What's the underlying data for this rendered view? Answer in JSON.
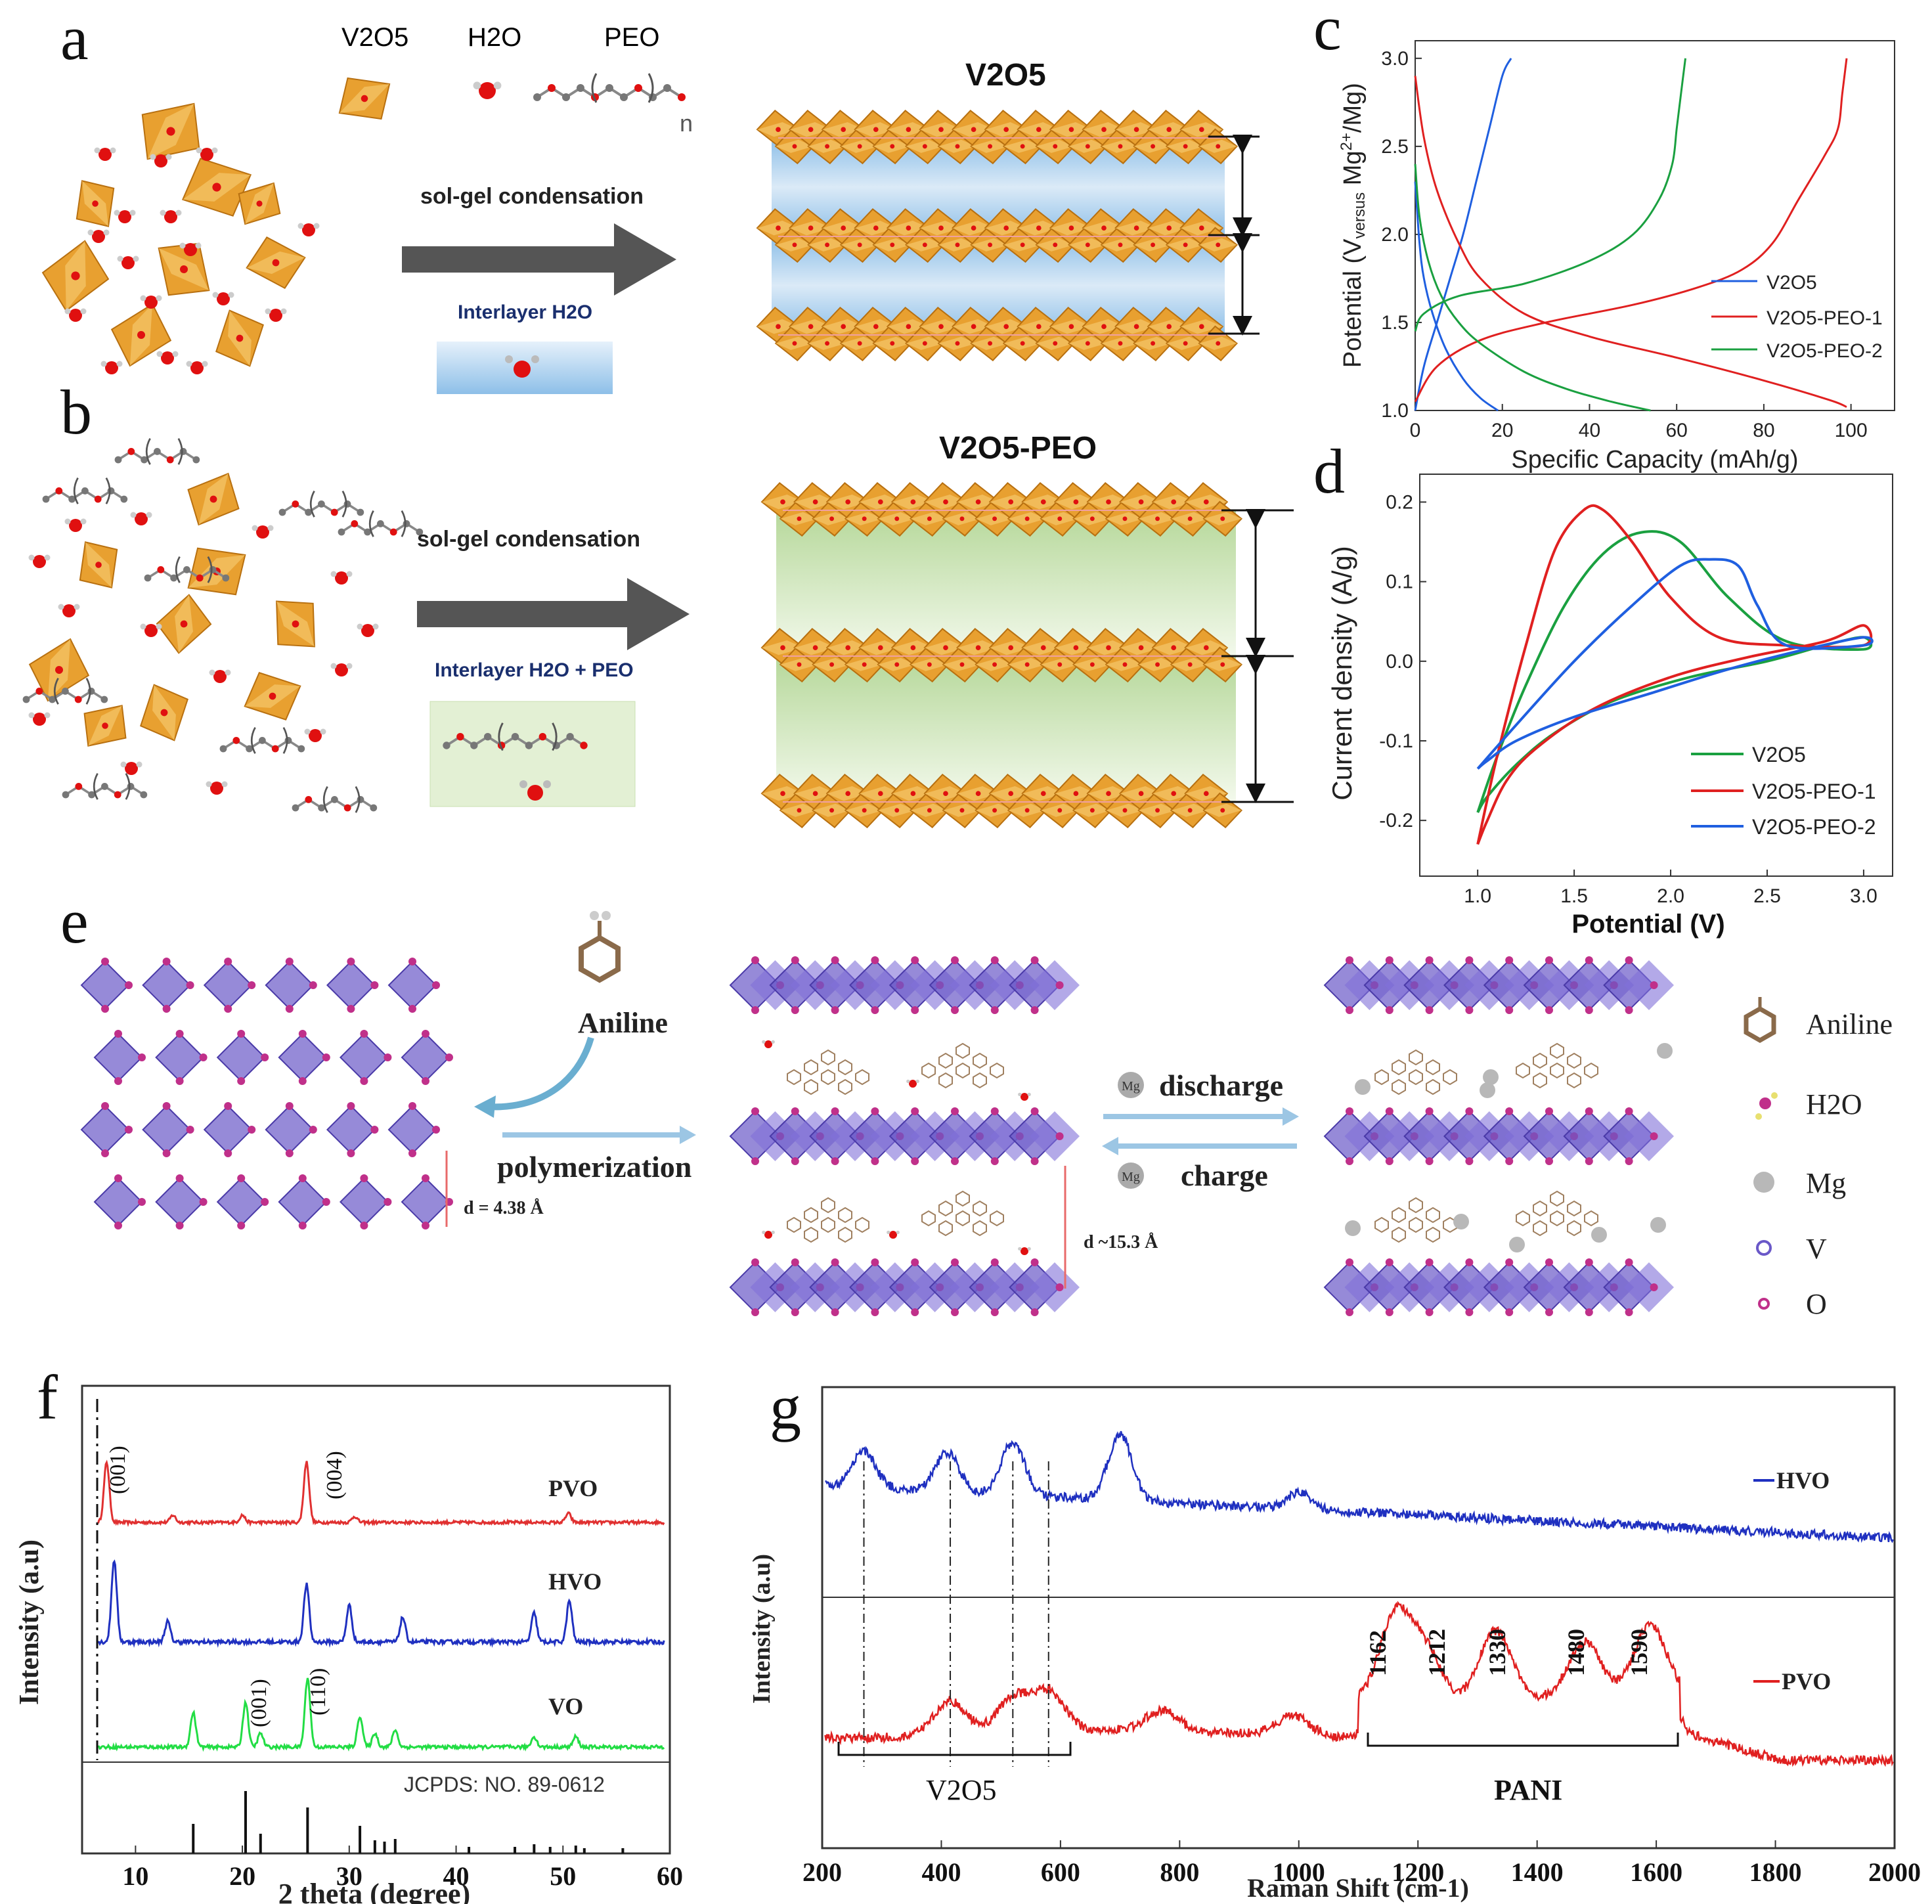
{
  "panel_labels": {
    "a": "a",
    "b": "b",
    "c": "c",
    "d": "d",
    "e": "e",
    "f": "f",
    "g": "g"
  },
  "schematic_ab": {
    "legend_v2o5": "V2O5",
    "legend_h2o": "H2O",
    "legend_peo": "PEO",
    "peo_n": "n",
    "a_arrow_label": "sol-gel condensation",
    "a_interlayer": "Interlayer H2O",
    "a_product_title": "V2O5",
    "b_arrow_label": "sol-gel condensation",
    "b_interlayer": "Interlayer H2O + PEO",
    "b_product_title": "V2O5-PEO",
    "colors": {
      "octahedron": "#e8a030",
      "oxygen": "#e01010",
      "arrow": "#555555",
      "blue_layer": "#a9cfee",
      "green_layer": "#cfe6b8",
      "label_blue": "#1a2f6e"
    }
  },
  "schematic_e": {
    "aniline_label": "Aniline",
    "polymerization_label": "polymerization",
    "d_left": "d = 4.38 Å",
    "d_mid": "d ~15.3 Å",
    "discharge_label": "discharge",
    "charge_label": "charge",
    "mg_badge": "Mg",
    "legend": [
      {
        "name": "Aniline",
        "icon": "benzene-icon"
      },
      {
        "name": "H2O",
        "icon": "water-icon"
      },
      {
        "name": "Mg",
        "icon": "mg-atom-icon"
      },
      {
        "name": "V",
        "icon": "v-atom-icon"
      },
      {
        "name": "O",
        "icon": "o-atom-icon"
      }
    ],
    "colors": {
      "polyhedra": "#6a58c8",
      "oxygen": "#c0308a",
      "mg": "#b8b8b8",
      "arrow": "#9cc6e4"
    }
  },
  "chart_data": [
    {
      "panel": "c",
      "type": "line",
      "title": "",
      "xlabel": "Specific Capacity (mAh/g)",
      "ylabel": "Potential (V versus Mg2+/Mg)",
      "xlim": [
        0,
        110
      ],
      "ylim": [
        1.0,
        3.1
      ],
      "xticks": [
        0,
        20,
        40,
        60,
        80,
        100
      ],
      "yticks": [
        1.0,
        1.5,
        2.0,
        2.5,
        3.0
      ],
      "legend_position": "right",
      "series": [
        {
          "name": "V2O5",
          "color": "#1f5fe0",
          "charge": {
            "x": [
              0,
              2,
              5,
              8,
              11,
              14,
              17,
              20,
              22
            ],
            "y": [
              1.0,
              1.25,
              1.5,
              1.75,
              2.0,
              2.3,
              2.6,
              2.9,
              3.0
            ]
          },
          "discharge": {
            "x": [
              0,
              1,
              2,
              4,
              7,
              11,
              15,
              19
            ],
            "y": [
              2.3,
              1.95,
              1.75,
              1.55,
              1.35,
              1.18,
              1.07,
              1.0
            ]
          }
        },
        {
          "name": "V2O5-PEO-1",
          "color": "#e02020",
          "charge": {
            "x": [
              0,
              5,
              15,
              30,
              50,
              65,
              75,
              82,
              88,
              94,
              97,
              98,
              99
            ],
            "y": [
              1.05,
              1.25,
              1.4,
              1.5,
              1.6,
              1.7,
              1.8,
              1.95,
              2.2,
              2.45,
              2.6,
              2.8,
              3.0
            ]
          },
          "discharge": {
            "x": [
              0,
              2,
              5,
              10,
              15,
              25,
              40,
              60,
              80,
              95,
              99
            ],
            "y": [
              2.9,
              2.55,
              2.25,
              1.95,
              1.75,
              1.55,
              1.42,
              1.3,
              1.17,
              1.06,
              1.02
            ]
          }
        },
        {
          "name": "V2O5-PEO-2",
          "color": "#1aa040",
          "charge": {
            "x": [
              0,
              2,
              10,
              25,
              40,
              50,
              56,
              59,
              60,
              61,
              62
            ],
            "y": [
              1.45,
              1.55,
              1.65,
              1.72,
              1.85,
              2.0,
              2.2,
              2.4,
              2.6,
              2.8,
              3.0
            ]
          },
          "discharge": {
            "x": [
              0,
              1,
              3,
              6,
              10,
              15,
              25,
              35,
              45,
              54
            ],
            "y": [
              2.4,
              2.1,
              1.85,
              1.65,
              1.5,
              1.38,
              1.22,
              1.12,
              1.05,
              1.0
            ]
          }
        }
      ]
    },
    {
      "panel": "d",
      "type": "line",
      "title": "",
      "xlabel": "Potential (V)",
      "ylabel": "Current density (A/g)",
      "xlim": [
        0.7,
        3.15
      ],
      "ylim": [
        -0.27,
        0.235
      ],
      "xticks": [
        1.0,
        1.5,
        2.0,
        2.5,
        3.0
      ],
      "yticks": [
        -0.2,
        -0.1,
        0.0,
        0.1,
        0.2
      ],
      "legend_position": "bottom-right",
      "series": [
        {
          "name": "V2O5",
          "color": "#1aa040",
          "x": [
            1.0,
            1.1,
            1.25,
            1.45,
            1.65,
            1.85,
            2.05,
            2.3,
            2.6,
            3.0,
            3.0,
            2.8,
            2.5,
            2.1,
            1.7,
            1.4,
            1.2,
            1.05,
            1.0
          ],
          "y": [
            -0.19,
            -0.12,
            -0.03,
            0.07,
            0.135,
            0.162,
            0.15,
            0.08,
            0.025,
            0.015,
            0.03,
            0.02,
            0.0,
            -0.02,
            -0.05,
            -0.09,
            -0.13,
            -0.17,
            -0.19
          ]
        },
        {
          "name": "V2O5-PEO-1",
          "color": "#e02020",
          "x": [
            1.0,
            1.1,
            1.25,
            1.4,
            1.55,
            1.65,
            1.8,
            2.0,
            2.25,
            2.6,
            3.0,
            3.0,
            2.8,
            2.4,
            2.0,
            1.6,
            1.3,
            1.15,
            1.05,
            1.0
          ],
          "y": [
            -0.23,
            -0.12,
            0.02,
            0.14,
            0.19,
            0.19,
            0.15,
            0.08,
            0.03,
            0.02,
            0.02,
            0.045,
            0.025,
            0.005,
            -0.02,
            -0.06,
            -0.11,
            -0.15,
            -0.2,
            -0.23
          ]
        },
        {
          "name": "V2O5-PEO-2",
          "color": "#1f5fe0",
          "x": [
            1.0,
            1.2,
            1.5,
            1.8,
            2.05,
            2.2,
            2.35,
            2.45,
            2.6,
            3.0,
            3.0,
            2.7,
            2.3,
            1.9,
            1.5,
            1.2,
            1.05,
            1.0
          ],
          "y": [
            -0.135,
            -0.08,
            0.0,
            0.07,
            0.12,
            0.128,
            0.12,
            0.07,
            0.02,
            0.02,
            0.03,
            0.015,
            -0.01,
            -0.04,
            -0.07,
            -0.1,
            -0.125,
            -0.135
          ]
        }
      ]
    },
    {
      "panel": "f",
      "type": "line",
      "title": "",
      "xlabel": "2 theta (degree)",
      "ylabel": "Intensity (a.u)",
      "xlim": [
        5,
        60
      ],
      "xticks": [
        10,
        20,
        30,
        40,
        50,
        60
      ],
      "series": [
        {
          "name": "PVO",
          "color": "#e03030",
          "peaks": [
            [
              7.3,
              1.0
            ],
            [
              13.5,
              0.12
            ],
            [
              20.0,
              0.12
            ],
            [
              26.0,
              1.0
            ],
            [
              30.5,
              0.1
            ],
            [
              50.5,
              0.15
            ]
          ]
        },
        {
          "name": "HVO",
          "color": "#1f30c0",
          "peaks": [
            [
              8.0,
              1.0
            ],
            [
              13.0,
              0.25
            ],
            [
              26.0,
              0.7
            ],
            [
              30.0,
              0.45
            ],
            [
              35.0,
              0.3
            ],
            [
              47.3,
              0.35
            ],
            [
              50.6,
              0.5
            ]
          ]
        },
        {
          "name": "VO",
          "color": "#22dd44",
          "peaks": [
            [
              15.4,
              0.5
            ],
            [
              20.3,
              0.65
            ],
            [
              21.7,
              0.2
            ],
            [
              26.1,
              1.0
            ],
            [
              31.0,
              0.45
            ],
            [
              32.4,
              0.2
            ],
            [
              34.3,
              0.25
            ],
            [
              47.3,
              0.15
            ],
            [
              51.2,
              0.15
            ]
          ]
        }
      ],
      "reference_sticks": {
        "label": "JCPDS: NO. 89-0612",
        "positions": [
          15.4,
          20.3,
          21.7,
          26.1,
          31.0,
          32.4,
          33.3,
          34.3,
          41.2,
          45.5,
          47.3,
          48.8,
          51.2,
          52.0,
          55.6
        ]
      },
      "annotations": [
        "(001)",
        "(004)",
        "(001)",
        "(110)"
      ]
    },
    {
      "panel": "g",
      "type": "line",
      "title": "",
      "xlabel": "Raman Shift (cm-1)",
      "ylabel": "Intensity (a.u)",
      "xlim": [
        200,
        2000
      ],
      "xticks": [
        200,
        400,
        600,
        800,
        1000,
        1200,
        1400,
        1600,
        1800,
        2000
      ],
      "series": [
        {
          "name": "HVO",
          "color": "#1f30c0",
          "peaks": [
            [
              270,
              0.55
            ],
            [
              410,
              0.6
            ],
            [
              520,
              0.8
            ],
            [
              700,
              1.0
            ],
            [
              1000,
              0.25
            ]
          ]
        },
        {
          "name": "PVO",
          "color": "#e02020",
          "peaks": [
            [
              415,
              0.35
            ],
            [
              520,
              0.35
            ],
            [
              580,
              0.4
            ],
            [
              770,
              0.2
            ],
            [
              990,
              0.2
            ],
            [
              1162,
              0.85
            ],
            [
              1212,
              0.5
            ],
            [
              1330,
              0.7
            ],
            [
              1480,
              0.55
            ],
            [
              1590,
              0.7
            ]
          ]
        }
      ],
      "peak_labels": [
        "1162",
        "1212",
        "1330",
        "1480",
        "1590"
      ],
      "bracket_labels": [
        "V2O5",
        "PANI"
      ]
    }
  ],
  "legend_labels": {
    "c": [
      "V2O5",
      "V2O5-PEO-1",
      "V2O5-PEO-2"
    ],
    "d": [
      "V2O5",
      "V2O5-PEO-1",
      "V2O5-PEO-2"
    ],
    "f": [
      "PVO",
      "HVO",
      "VO"
    ],
    "g": [
      "HVO",
      "PVO"
    ]
  }
}
